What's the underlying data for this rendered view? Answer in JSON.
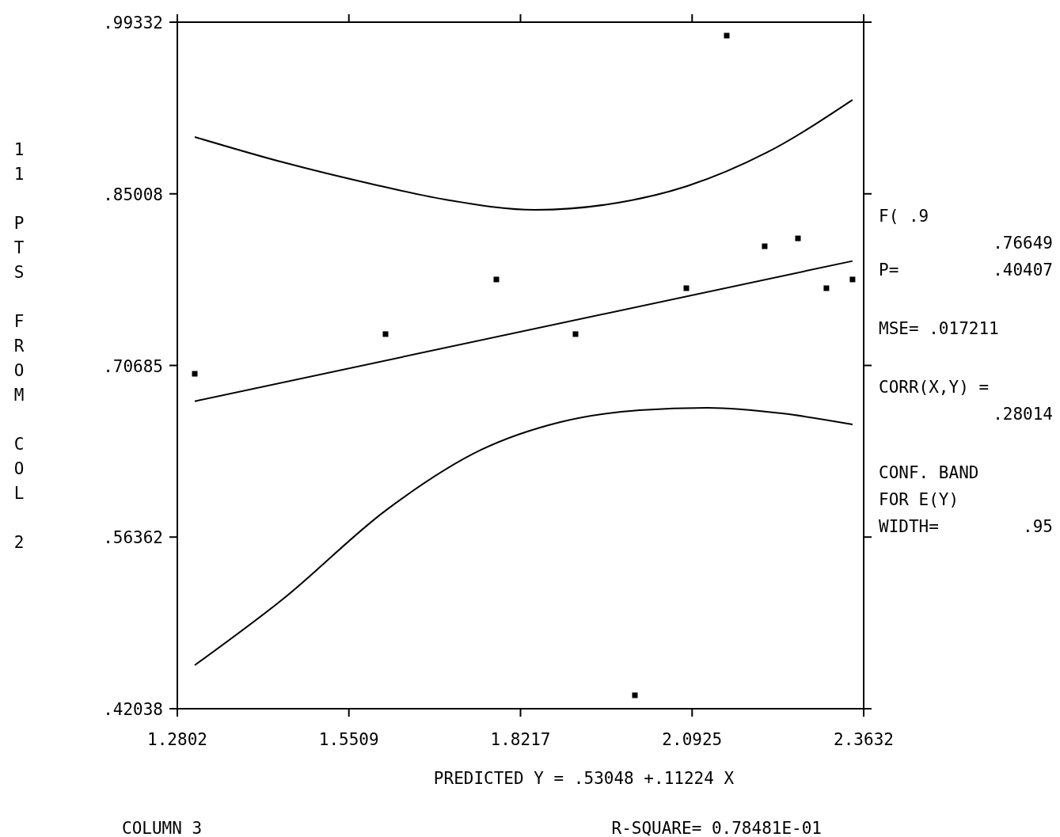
{
  "chart_data": {
    "type": "scatter",
    "xlabel": "PREDICTED Y = .53048 +.11224 X",
    "ylabel": "11 PTS FROM COL 2",
    "xlim": [
      1.2802,
      2.3632
    ],
    "ylim": [
      0.42038,
      0.99332
    ],
    "xticks": [
      1.2802,
      {
        "value": 1.5509,
        "label": "1.5509"
      },
      {
        "value": 1.8217,
        "label": "1.8217"
      },
      {
        "value": 2.0925,
        "label": "2.0925"
      },
      {
        "value": 2.3632,
        "label": "2.3632"
      }
    ],
    "yticks": [
      {
        "value": 0.42038,
        "label": ".42038"
      },
      {
        "value": 0.56362,
        "label": ".56362"
      },
      {
        "value": 0.70685,
        "label": ".70685"
      },
      {
        "value": 0.85008,
        "label": ".85008"
      },
      {
        "value": 0.99332,
        "label": ".99332"
      }
    ],
    "line_style": "solid",
    "x": [
      1.3077,
      1.6087,
      1.7836,
      1.9085,
      2.0022,
      2.0834,
      2.1471,
      2.207,
      2.2595,
      2.3044,
      2.3456
    ],
    "series": [
      {
        "marker": "square",
        "color": "#000000",
        "values": [
          0.6999,
          0.733,
          0.7786,
          0.733,
          0.4316,
          0.7713,
          0.9821,
          0.8063,
          0.8129,
          0.7713,
          0.7786
        ]
      },
      {
        "type": "line",
        "marker": "none",
        "color": "#000000",
        "x": [
          1.3077,
          2.3456
        ],
        "values": [
          0.677,
          0.794
        ]
      },
      {
        "type": "line",
        "marker": "none",
        "color": "#000000",
        "x": [
          1.3077,
          1.4476,
          1.5849,
          1.7099,
          1.8447,
          1.9597,
          2.0846,
          2.2094,
          2.3456
        ],
        "values": [
          0.8975,
          0.8763,
          0.8585,
          0.8446,
          0.8367,
          0.8413,
          0.8565,
          0.8843,
          0.9285
        ]
      },
      {
        "type": "line",
        "marker": "none",
        "color": "#000000",
        "x": [
          1.3077,
          1.4476,
          1.6099,
          1.7598,
          1.8847,
          2.0096,
          2.117,
          2.2344,
          2.3456
        ],
        "values": [
          0.4567,
          0.5122,
          0.5862,
          0.6365,
          0.6596,
          0.6695,
          0.6715,
          0.6668,
          0.6576
        ]
      }
    ],
    "annotations": [
      "F( .9\n.76649\nP=  .40407",
      "MSE= .017211",
      "CORR(X,Y) =\n.28014",
      "CONF. BAND\nFOR E(Y)\nWIDTH=  .95",
      "COLUMN 3",
      "R-SQUARE=  0.78481E-01"
    ]
  }
}
